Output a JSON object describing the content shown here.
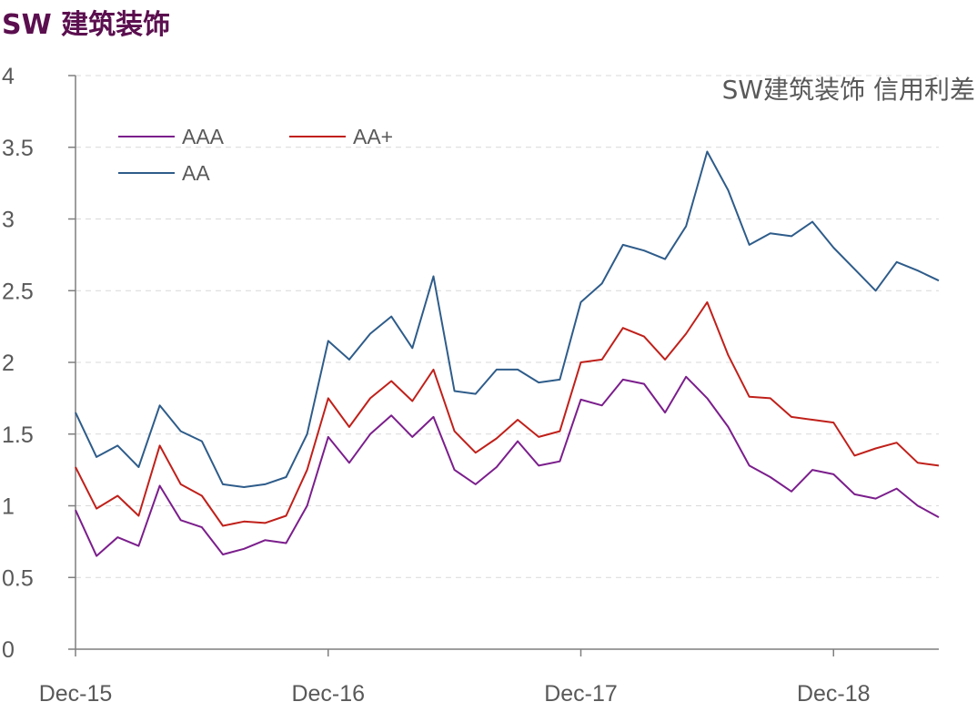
{
  "page_title": "SW 建筑装饰",
  "chart_data": {
    "type": "line",
    "title": "SW建筑装饰 信用利差",
    "xlabel": "",
    "ylabel": "",
    "ylim": [
      0,
      4
    ],
    "yticks": [
      "0",
      "0.5",
      "1",
      "1.5",
      "2",
      "2.5",
      "3",
      "3.5",
      "4"
    ],
    "xticks": [
      "Dec-15",
      "Dec-16",
      "Dec-17",
      "Dec-18"
    ],
    "grid": true,
    "legend_position": "top-left",
    "x": [
      "Dec-15",
      "Jan-16",
      "Feb-16",
      "Mar-16",
      "Apr-16",
      "May-16",
      "Jun-16",
      "Jul-16",
      "Aug-16",
      "Sep-16",
      "Oct-16",
      "Nov-16",
      "Dec-16",
      "Jan-17",
      "Feb-17",
      "Mar-17",
      "Apr-17",
      "May-17",
      "Jun-17",
      "Jul-17",
      "Aug-17",
      "Sep-17",
      "Oct-17",
      "Nov-17",
      "Dec-17",
      "Jan-18",
      "Feb-18",
      "Mar-18",
      "Apr-18",
      "May-18",
      "Jun-18",
      "Jul-18",
      "Aug-18",
      "Sep-18",
      "Oct-18",
      "Nov-18",
      "Dec-18",
      "Jan-19",
      "Feb-19",
      "Mar-19",
      "Apr-19",
      "May-19"
    ],
    "series": [
      {
        "name": "AAA",
        "color": "#7B1E8C",
        "values": [
          0.97,
          0.65,
          0.78,
          0.72,
          1.14,
          0.9,
          0.85,
          0.66,
          0.7,
          0.76,
          0.74,
          1.0,
          1.48,
          1.3,
          1.5,
          1.63,
          1.48,
          1.62,
          1.25,
          1.15,
          1.27,
          1.45,
          1.28,
          1.31,
          1.74,
          1.7,
          1.88,
          1.85,
          1.65,
          1.9,
          1.75,
          1.55,
          1.28,
          1.2,
          1.1,
          1.25,
          1.22,
          1.08,
          1.05,
          1.12,
          1.0,
          0.92
        ]
      },
      {
        "name": "AA+",
        "color": "#C0201A",
        "values": [
          1.27,
          0.98,
          1.07,
          0.93,
          1.42,
          1.15,
          1.07,
          0.86,
          0.89,
          0.88,
          0.93,
          1.25,
          1.75,
          1.55,
          1.75,
          1.87,
          1.73,
          1.95,
          1.52,
          1.37,
          1.47,
          1.6,
          1.48,
          1.52,
          2.0,
          2.02,
          2.24,
          2.18,
          2.02,
          2.2,
          2.42,
          2.05,
          1.76,
          1.75,
          1.62,
          1.6,
          1.58,
          1.35,
          1.4,
          1.44,
          1.3,
          1.28
        ]
      },
      {
        "name": "AA",
        "color": "#2E5C8A",
        "values": [
          1.65,
          1.34,
          1.42,
          1.27,
          1.7,
          1.52,
          1.45,
          1.15,
          1.13,
          1.15,
          1.2,
          1.5,
          2.15,
          2.02,
          2.2,
          2.32,
          2.1,
          2.6,
          1.8,
          1.78,
          1.95,
          1.95,
          1.86,
          1.88,
          2.42,
          2.55,
          2.82,
          2.78,
          2.72,
          2.95,
          3.47,
          3.2,
          2.82,
          2.9,
          2.88,
          2.98,
          2.8,
          2.65,
          2.5,
          2.7,
          2.64,
          2.57
        ]
      }
    ]
  }
}
